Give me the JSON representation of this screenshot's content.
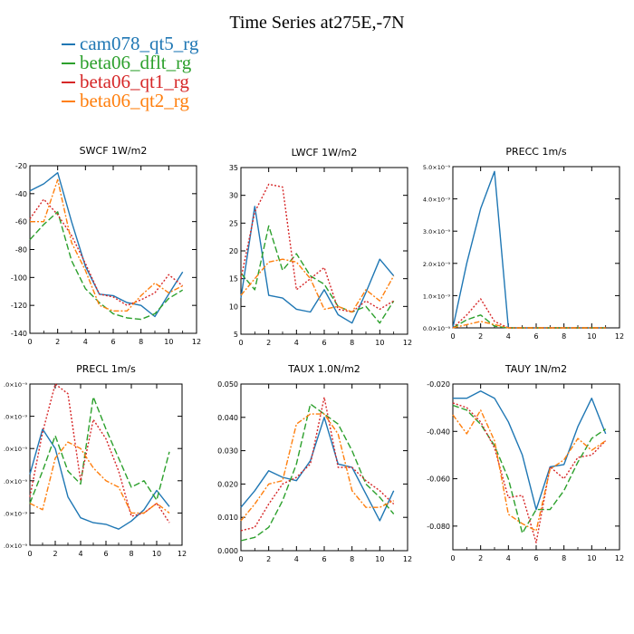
{
  "title": "Time Series at275E,-7N",
  "colors": {
    "cam": "#1f77b4",
    "dflt": "#2ca02c",
    "qt1": "#d62728",
    "qt2": "#ff7f0e"
  },
  "legend": [
    {
      "label": "cam078_qt5_rg",
      "color": "#1f77b4",
      "dash": "none"
    },
    {
      "label": "beta06_dflt_rg",
      "color": "#2ca02c",
      "dash": "7,3"
    },
    {
      "label": "beta06_qt1_rg",
      "color": "#d62728",
      "dash": "2,2"
    },
    {
      "label": "beta06_qt2_rg",
      "color": "#ff7f0e",
      "dash": "6,2,2,2"
    }
  ],
  "chart_data": [
    {
      "type": "line",
      "title": "SWCF   1W/m2",
      "x": [
        0,
        1,
        2,
        3,
        4,
        5,
        6,
        7,
        8,
        9,
        10,
        11
      ],
      "xlim": [
        0,
        12
      ],
      "xticks": [
        "0",
        "2",
        "4",
        "6",
        "8",
        "10",
        "12"
      ],
      "ylim": [
        -140,
        -20
      ],
      "yticks": [
        "-140",
        "-120",
        "-100",
        "-80",
        "-60",
        "-40",
        "-20"
      ],
      "series": [
        {
          "name": "cam078_qt5_rg",
          "values": [
            -38,
            -33,
            -25,
            -60,
            -92,
            -112,
            -113,
            -118,
            -120,
            -128,
            -112,
            -96
          ]
        },
        {
          "name": "beta06_dflt_rg",
          "values": [
            -73,
            -62,
            -53,
            -88,
            -108,
            -118,
            -126,
            -129,
            -130,
            -126,
            -115,
            -109
          ]
        },
        {
          "name": "beta06_qt1_rg",
          "values": [
            -58,
            -44,
            -55,
            -70,
            -90,
            -112,
            -114,
            -120,
            -116,
            -111,
            -98,
            -106
          ]
        },
        {
          "name": "beta06_qt2_rg",
          "values": [
            -60,
            -60,
            -30,
            -75,
            -95,
            -120,
            -124,
            -124,
            -113,
            -104,
            -111,
            -106
          ]
        }
      ]
    },
    {
      "type": "line",
      "title": "LWCF   1W/m2",
      "x": [
        0,
        1,
        2,
        3,
        4,
        5,
        6,
        7,
        8,
        9,
        10,
        11
      ],
      "xlim": [
        0,
        12
      ],
      "xticks": [
        "0",
        "2",
        "4",
        "6",
        "8",
        "10",
        "12"
      ],
      "ylim": [
        5,
        35
      ],
      "yticks": [
        "5",
        "10",
        "15",
        "20",
        "25",
        "30",
        "35"
      ],
      "series": [
        {
          "name": "cam078_qt5_rg",
          "values": [
            11.5,
            28,
            12,
            11.5,
            9.5,
            9,
            13,
            8.5,
            7,
            12.5,
            18.5,
            15.5
          ]
        },
        {
          "name": "beta06_dflt_rg",
          "values": [
            16,
            13,
            24.5,
            16.5,
            19.5,
            15.5,
            14,
            10,
            9,
            10,
            7,
            11
          ]
        },
        {
          "name": "beta06_qt1_rg",
          "values": [
            15,
            27,
            32,
            31.5,
            13,
            15,
            17,
            9.5,
            9,
            11,
            9.5,
            11
          ]
        },
        {
          "name": "beta06_qt2_rg",
          "values": [
            12,
            15,
            18,
            18.5,
            18,
            15,
            9.5,
            10,
            9,
            13,
            11,
            15.5
          ]
        }
      ]
    },
    {
      "type": "line",
      "title": "PRECC   1m/s",
      "x": [
        0,
        1,
        2,
        3,
        4,
        5,
        6,
        7,
        8,
        9,
        10,
        11
      ],
      "xlim": [
        0,
        12
      ],
      "xticks": [
        "0",
        "2",
        "4",
        "6",
        "8",
        "10",
        "12"
      ],
      "ylim": [
        0,
        5
      ],
      "yticks": [
        "0.0×10⁻⁹",
        "1.0×10⁻⁹",
        "2.0×10⁻⁹",
        "3.0×10⁻⁹",
        "4.0×10⁻⁹",
        "5.0×10⁻⁹"
      ],
      "series": [
        {
          "name": "cam078_qt5_rg",
          "values": [
            0,
            2,
            3.7,
            4.85,
            0,
            0,
            0,
            0,
            0,
            0,
            0,
            0
          ]
        },
        {
          "name": "beta06_dflt_rg",
          "values": [
            0,
            0.25,
            0.4,
            0.05,
            0,
            0,
            0,
            0,
            0,
            0,
            0,
            0
          ]
        },
        {
          "name": "beta06_qt1_rg",
          "values": [
            0,
            0.4,
            0.9,
            0.2,
            0,
            0,
            0,
            0,
            0,
            0,
            0,
            0
          ]
        },
        {
          "name": "beta06_qt2_rg",
          "values": [
            0,
            0.1,
            0.2,
            0.1,
            0,
            0,
            0,
            0,
            0,
            0,
            0,
            0
          ]
        }
      ]
    },
    {
      "type": "line",
      "title": "PRECL   1m/s",
      "x": [
        0,
        1,
        2,
        3,
        4,
        5,
        6,
        7,
        8,
        9,
        10,
        11
      ],
      "xlim": [
        0,
        12
      ],
      "xticks": [
        "0",
        "2",
        "4",
        "6",
        "8",
        "10",
        "12"
      ],
      "ylim": [
        0,
        5
      ],
      "yticks": [
        ".0×10⁻⁹",
        ".0×10⁻⁹",
        ".0×10⁻⁹",
        ".0×10⁻⁹",
        ".0×10⁻⁹",
        ".0×10⁻⁹"
      ],
      "series": [
        {
          "name": "cam078_qt5_rg",
          "values": [
            2.2,
            3.6,
            3.0,
            1.5,
            0.85,
            0.7,
            0.65,
            0.5,
            0.75,
            1.1,
            1.7,
            1.2
          ]
        },
        {
          "name": "beta06_dflt_rg",
          "values": [
            1.3,
            2.3,
            3.4,
            2.3,
            1.9,
            4.6,
            3.6,
            2.7,
            1.8,
            2.0,
            1.4,
            2.9
          ]
        },
        {
          "name": "beta06_qt1_rg",
          "values": [
            1.5,
            3.5,
            5.0,
            4.7,
            2.0,
            3.9,
            3.3,
            2.3,
            0.9,
            1.0,
            1.3,
            0.7
          ]
        },
        {
          "name": "beta06_qt2_rg",
          "values": [
            1.3,
            1.1,
            2.7,
            3.2,
            3.0,
            2.4,
            2.0,
            1.8,
            1.0,
            1.0,
            1.3,
            1.0
          ]
        }
      ]
    },
    {
      "type": "line",
      "title": "TAUX   1.0N/m2",
      "x": [
        0,
        1,
        2,
        3,
        4,
        5,
        6,
        7,
        8,
        9,
        10,
        11
      ],
      "xlim": [
        0,
        12
      ],
      "xticks": [
        "0",
        "2",
        "4",
        "6",
        "8",
        "10",
        "12"
      ],
      "ylim": [
        0,
        0.05
      ],
      "yticks": [
        "0.000",
        "0.010",
        "0.020",
        "0.030",
        "0.040",
        "0.050"
      ],
      "series": [
        {
          "name": "cam078_qt5_rg",
          "values": [
            0.013,
            0.018,
            0.024,
            0.022,
            0.021,
            0.027,
            0.04,
            0.026,
            0.025,
            0.017,
            0.009,
            0.018
          ]
        },
        {
          "name": "beta06_dflt_rg",
          "values": [
            0.003,
            0.004,
            0.007,
            0.015,
            0.026,
            0.044,
            0.041,
            0.038,
            0.03,
            0.02,
            0.016,
            0.011
          ]
        },
        {
          "name": "beta06_qt1_rg",
          "values": [
            0.006,
            0.007,
            0.014,
            0.02,
            0.022,
            0.026,
            0.046,
            0.025,
            0.025,
            0.021,
            0.018,
            0.014
          ]
        },
        {
          "name": "beta06_qt2_rg",
          "values": [
            0.009,
            0.014,
            0.02,
            0.021,
            0.038,
            0.041,
            0.041,
            0.035,
            0.018,
            0.013,
            0.013,
            0.015
          ]
        }
      ]
    },
    {
      "type": "line",
      "title": "TAUY   1N/m2",
      "x": [
        0,
        1,
        2,
        3,
        4,
        5,
        6,
        7,
        8,
        9,
        10,
        11
      ],
      "xlim": [
        0,
        12
      ],
      "xticks": [
        "0",
        "2",
        "4",
        "6",
        "8",
        "10",
        "12"
      ],
      "ylim": [
        -0.09,
        -0.02
      ],
      "yticks": [
        "-0.080",
        "-0.060",
        "-0.040",
        "-0.020"
      ],
      "series": [
        {
          "name": "cam078_qt5_rg",
          "values": [
            -0.026,
            -0.026,
            -0.023,
            -0.026,
            -0.036,
            -0.05,
            -0.073,
            -0.055,
            -0.054,
            -0.038,
            -0.026,
            -0.041
          ]
        },
        {
          "name": "beta06_dflt_rg",
          "values": [
            -0.029,
            -0.031,
            -0.037,
            -0.046,
            -0.06,
            -0.083,
            -0.073,
            -0.073,
            -0.065,
            -0.053,
            -0.043,
            -0.039
          ]
        },
        {
          "name": "beta06_qt1_rg",
          "values": [
            -0.028,
            -0.03,
            -0.036,
            -0.047,
            -0.068,
            -0.067,
            -0.087,
            -0.055,
            -0.06,
            -0.051,
            -0.05,
            -0.044
          ]
        },
        {
          "name": "beta06_qt2_rg",
          "values": [
            -0.033,
            -0.041,
            -0.031,
            -0.044,
            -0.075,
            -0.079,
            -0.082,
            -0.056,
            -0.052,
            -0.043,
            -0.048,
            -0.044
          ]
        }
      ]
    }
  ]
}
